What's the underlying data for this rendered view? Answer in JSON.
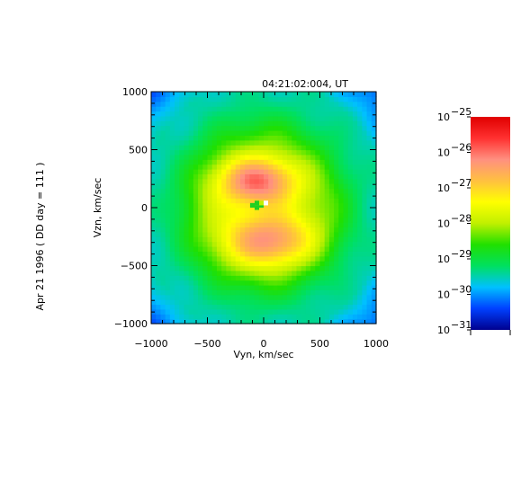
{
  "chart_data": {
    "type": "heatmap",
    "title": "04:21:02:004, UT",
    "side_label": "Apr 21 1996  ( DD day = 111 )",
    "xlabel": "Vyn, km/sec",
    "ylabel": "Vzn, km/sec",
    "xlim": [
      -1000,
      1000
    ],
    "ylim": [
      -1000,
      1000
    ],
    "x_ticks": [
      -1000,
      -500,
      0,
      500,
      1000
    ],
    "y_ticks": [
      -1000,
      -500,
      0,
      500,
      1000
    ],
    "x_tick_labels": [
      "−1000",
      "−500",
      "0",
      "500",
      "1000"
    ],
    "y_tick_labels": [
      "−1000",
      "−500",
      "0",
      "500",
      "1000"
    ],
    "colorbar": {
      "scale": "log",
      "range": [
        1e-31,
        1e-25
      ],
      "tick_exponents": [
        -25,
        -26,
        -27,
        -28,
        -29,
        -30,
        -31
      ],
      "tick_base": "10",
      "colors": [
        "#00008f",
        "#0040ff",
        "#00c0ff",
        "#00e060",
        "#20e000",
        "#c0f000",
        "#ffff00",
        "#ffc040",
        "#ff9080",
        "#ff3030",
        "#e00000"
      ]
    },
    "lobes": [
      {
        "name": "upper",
        "center": [
          -60,
          230
        ],
        "peak_exponent": -26.2
      },
      {
        "name": "lower",
        "center": [
          40,
          -280
        ],
        "peak_exponent": -26.5
      }
    ],
    "background_exponent": -29.5
  }
}
